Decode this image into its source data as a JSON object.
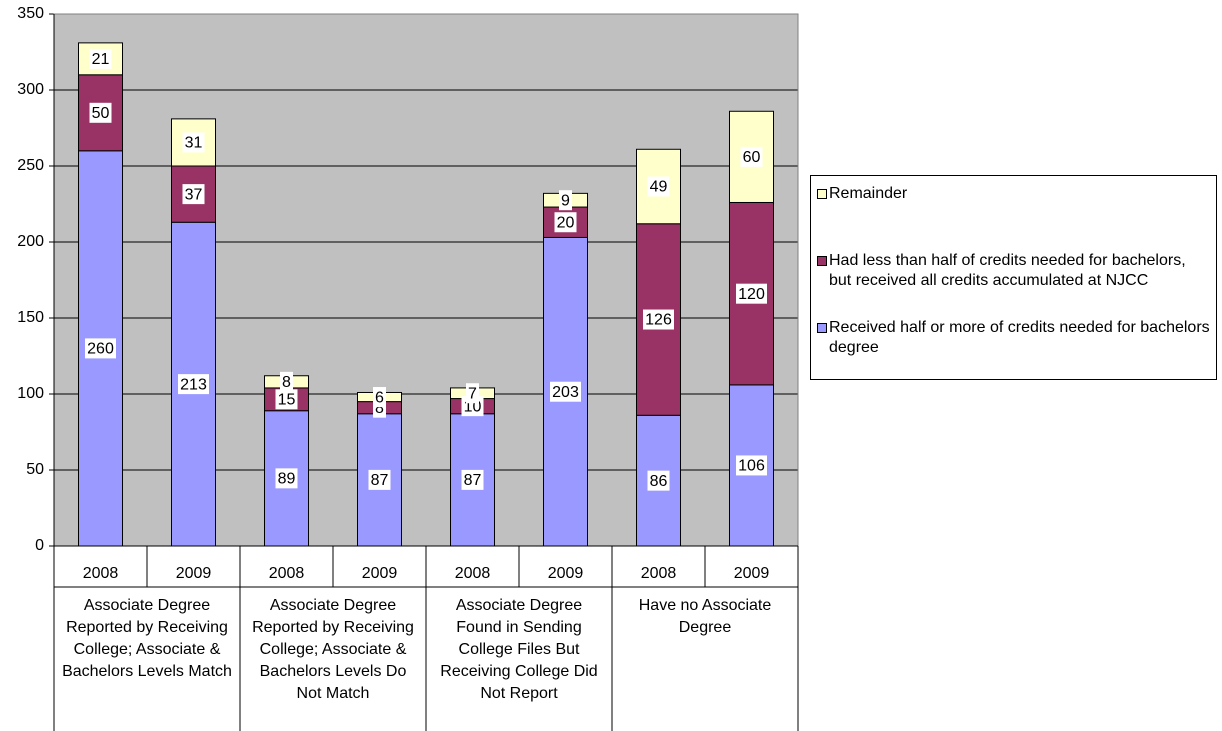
{
  "chart_data": {
    "type": "bar",
    "stacked": true,
    "ylim": [
      0,
      350
    ],
    "yticks": [
      0,
      50,
      100,
      150,
      200,
      250,
      300,
      350
    ],
    "grid": true,
    "legend_position": "right",
    "categories": [
      "2008",
      "2009",
      "2008",
      "2009",
      "2008",
      "2009",
      "2008",
      "2009"
    ],
    "groups": [
      {
        "label": "Associate Degree Reported by Receiving College; Associate & Bachelors Levels Match"
      },
      {
        "label": "Associate Degree Reported by Receiving College; Associate & Bachelors Levels Do Not Match"
      },
      {
        "label": "Associate Degree Found in Sending College Files But Receiving College Did Not Report"
      },
      {
        "label": "Have no Associate Degree"
      }
    ],
    "series": [
      {
        "name": "Received half or more of credits needed for bachelors degree",
        "color": "#9999ff",
        "values": [
          260,
          213,
          89,
          87,
          87,
          203,
          86,
          106
        ]
      },
      {
        "name": "Had less than half of credits needed for bachelors, but received all credits accumulated at NJCC",
        "color": "#993366",
        "values": [
          50,
          37,
          15,
          8,
          10,
          20,
          126,
          120
        ]
      },
      {
        "name": "Remainder",
        "color": "#ffffcc",
        "values": [
          21,
          31,
          8,
          6,
          7,
          9,
          49,
          60
        ]
      }
    ],
    "data_labels": [
      [
        "260",
        "213",
        "89",
        "87",
        "87",
        "203",
        "86",
        "106"
      ],
      [
        "50",
        "37",
        "15",
        "8",
        "10",
        "20",
        "126",
        "120"
      ],
      [
        "21",
        "31",
        "8",
        "6",
        "7",
        "9",
        "49",
        "60"
      ]
    ],
    "plot_background": "#c0c0c0"
  }
}
